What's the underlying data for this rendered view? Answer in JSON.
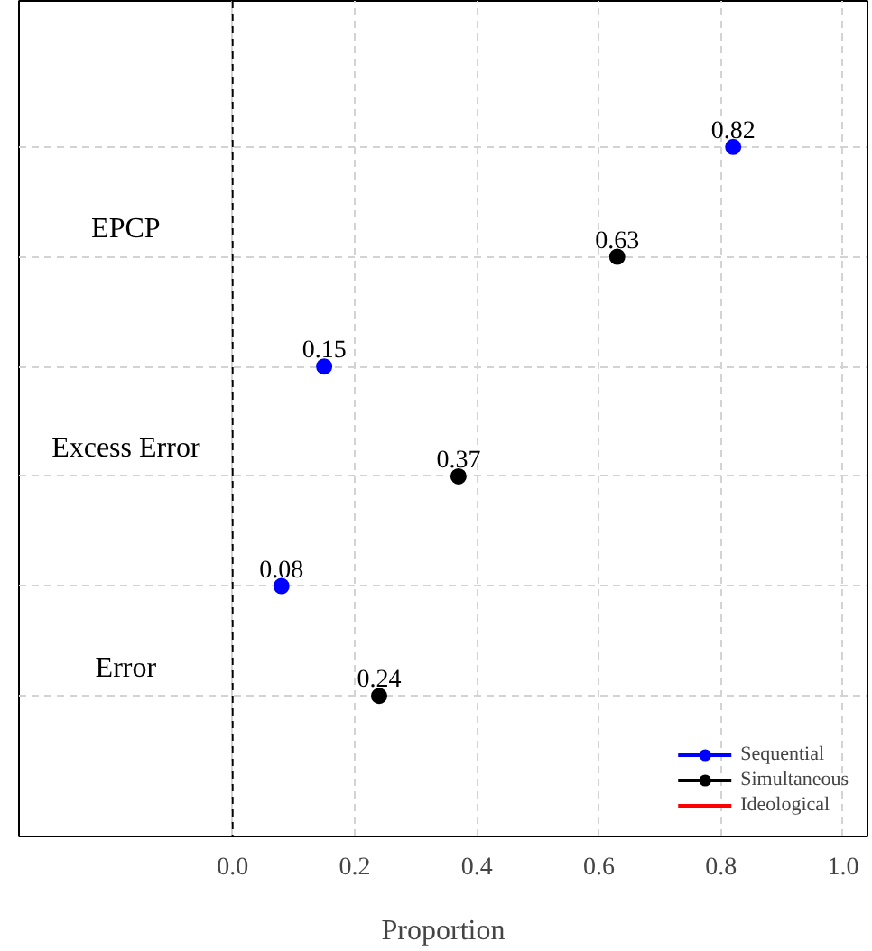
{
  "chart_data": {
    "type": "scatter",
    "orientation": "horizontal",
    "xlabel": "Proportion",
    "categories": [
      "EPCP",
      "Excess Error",
      "Error"
    ],
    "series": [
      {
        "name": "Sequential",
        "color": "#0000ff",
        "values": [
          0.82,
          0.15,
          0.08
        ]
      },
      {
        "name": "Simultaneous",
        "color": "#000000",
        "values": [
          0.63,
          0.37,
          0.24
        ]
      },
      {
        "name": "Ideological",
        "color": "#ff0000",
        "values": [
          null,
          null,
          null
        ]
      }
    ],
    "xlim": [
      -0.35,
      1.04
    ],
    "xticks": [
      {
        "value": 0,
        "label": "0.0"
      },
      0.2,
      0.4,
      0.6,
      0.8,
      {
        "value": 1,
        "label": "1.0"
      }
    ],
    "tick_labels": "x",
    "grid": true,
    "legend": "bottom right",
    "marker": "circle",
    "data_labels": true,
    "ref_lines": [
      {
        "axis": "x",
        "value": 0,
        "label": null,
        "color": "#000000",
        "line_style": "dashed"
      }
    ]
  }
}
